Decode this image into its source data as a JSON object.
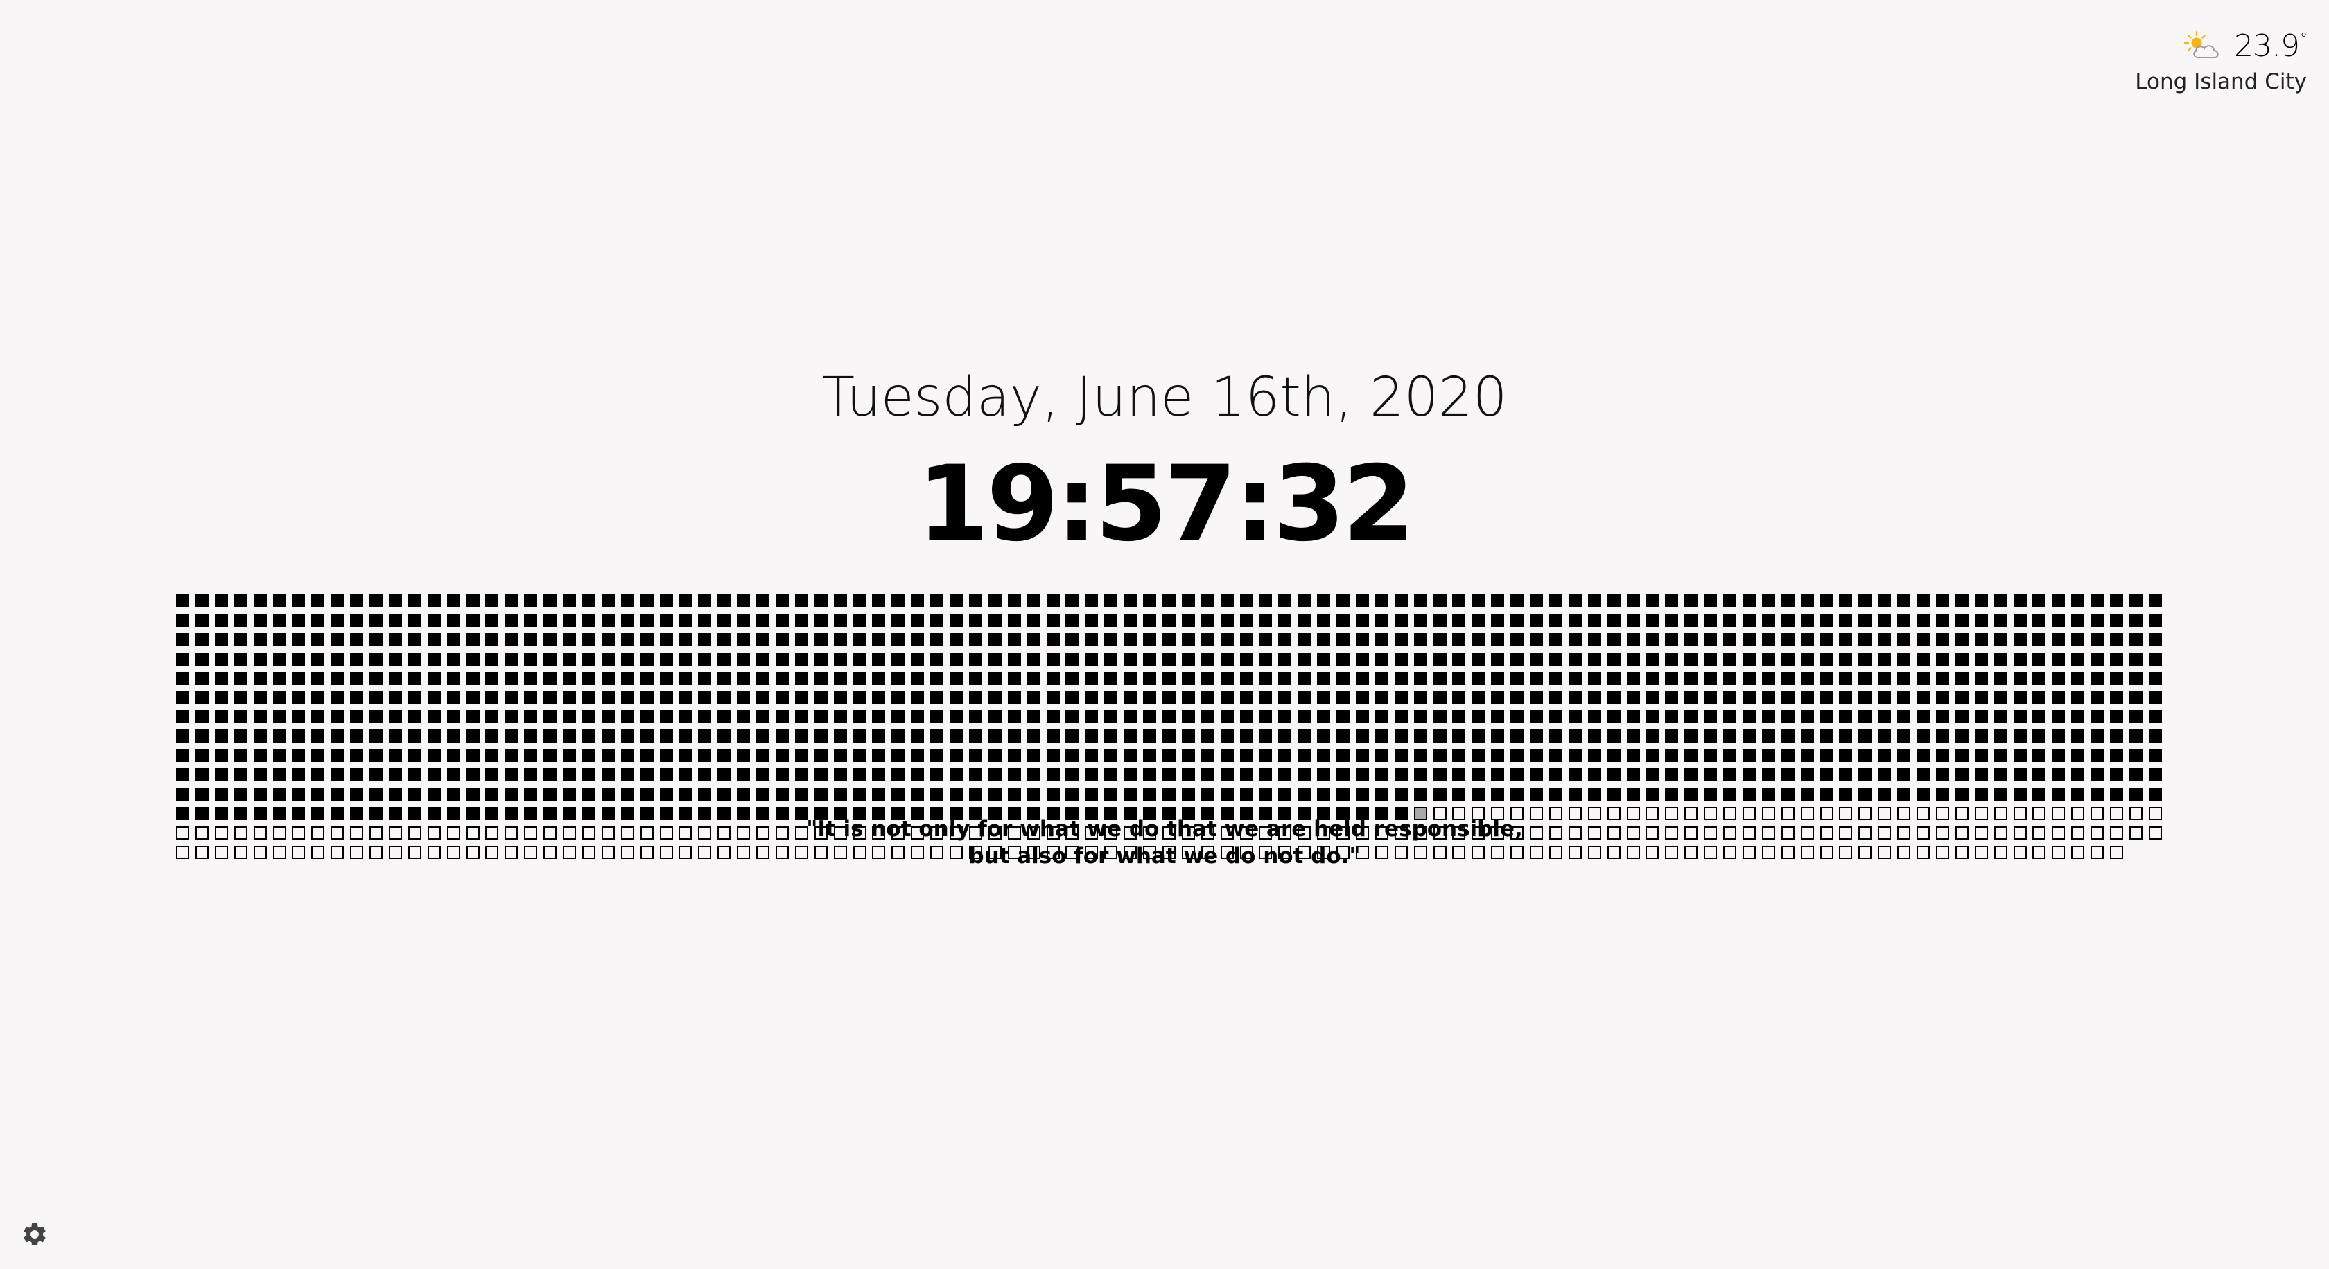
{
  "weather": {
    "icon": "partly-cloudy-sun-icon",
    "temperature": "23.9",
    "degree_symbol": "°",
    "location": "Long Island City"
  },
  "clock": {
    "date": "Tuesday, June 16th, 2020",
    "time": "19:57:32"
  },
  "day_progress": {
    "total_minutes": 1440,
    "elapsed_minutes": 1197,
    "current_minute_index": 1197,
    "columns": 103
  },
  "quote": {
    "line1": "\"It is not only for what we do that we are held responsible,",
    "line2": "but also for what we do not do.\""
  },
  "settings": {
    "icon": "gear-icon"
  },
  "colors": {
    "background": "#f8f6f7",
    "filled": "#000000",
    "current": "#a8a8a8",
    "sun": "#f5b21b"
  }
}
